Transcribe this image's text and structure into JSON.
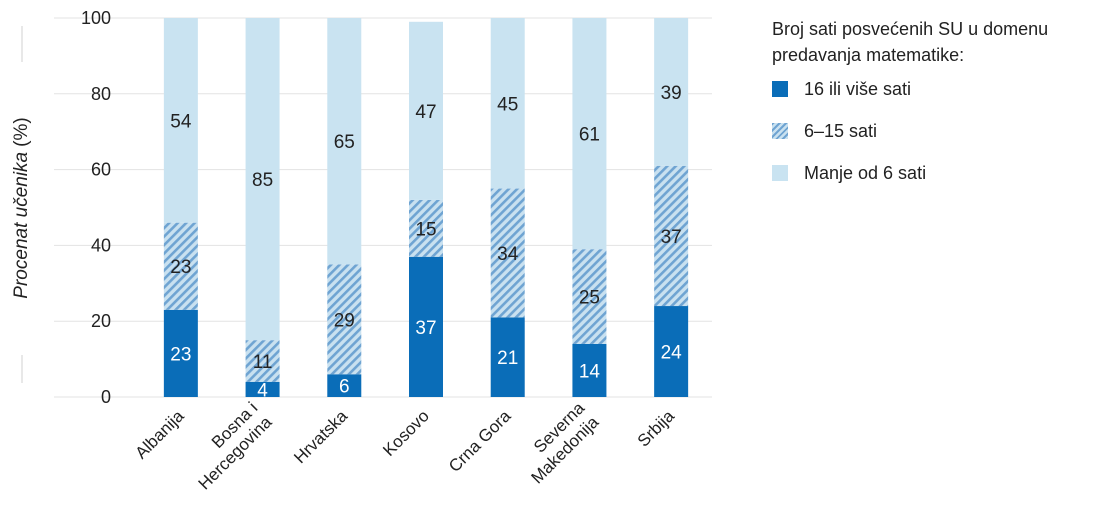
{
  "chart_data": {
    "type": "bar",
    "stacked": true,
    "ylabel_italic": "Procenat učenika",
    "ylabel_suffix": "(%)",
    "ylim": [
      0,
      100
    ],
    "yticks": [
      0,
      20,
      40,
      60,
      80,
      100
    ],
    "grid": true,
    "legend_position": "right",
    "categories": [
      [
        "Albanija"
      ],
      [
        "Bosna i",
        "Hercegovina"
      ],
      [
        "Hrvatska"
      ],
      [
        "Kosovo"
      ],
      [
        "Crna Gora"
      ],
      [
        "Severna",
        "Makedonija"
      ],
      [
        "Srbija"
      ]
    ],
    "series": [
      {
        "name": "16 ili više sati",
        "color": "#0a6db8",
        "values": [
          23,
          4,
          6,
          37,
          21,
          14,
          24
        ]
      },
      {
        "name": "6–15 sati",
        "color": "#6fa4d2",
        "values": [
          23,
          11,
          29,
          15,
          34,
          25,
          37
        ]
      },
      {
        "name": "Manje od 6 sati",
        "color": "#c9e3f1",
        "values": [
          54,
          85,
          65,
          47,
          45,
          61,
          39
        ]
      }
    ],
    "legend_title": [
      "Broj sati posvećenih SU u domenu",
      "predavanja matematike:"
    ]
  }
}
